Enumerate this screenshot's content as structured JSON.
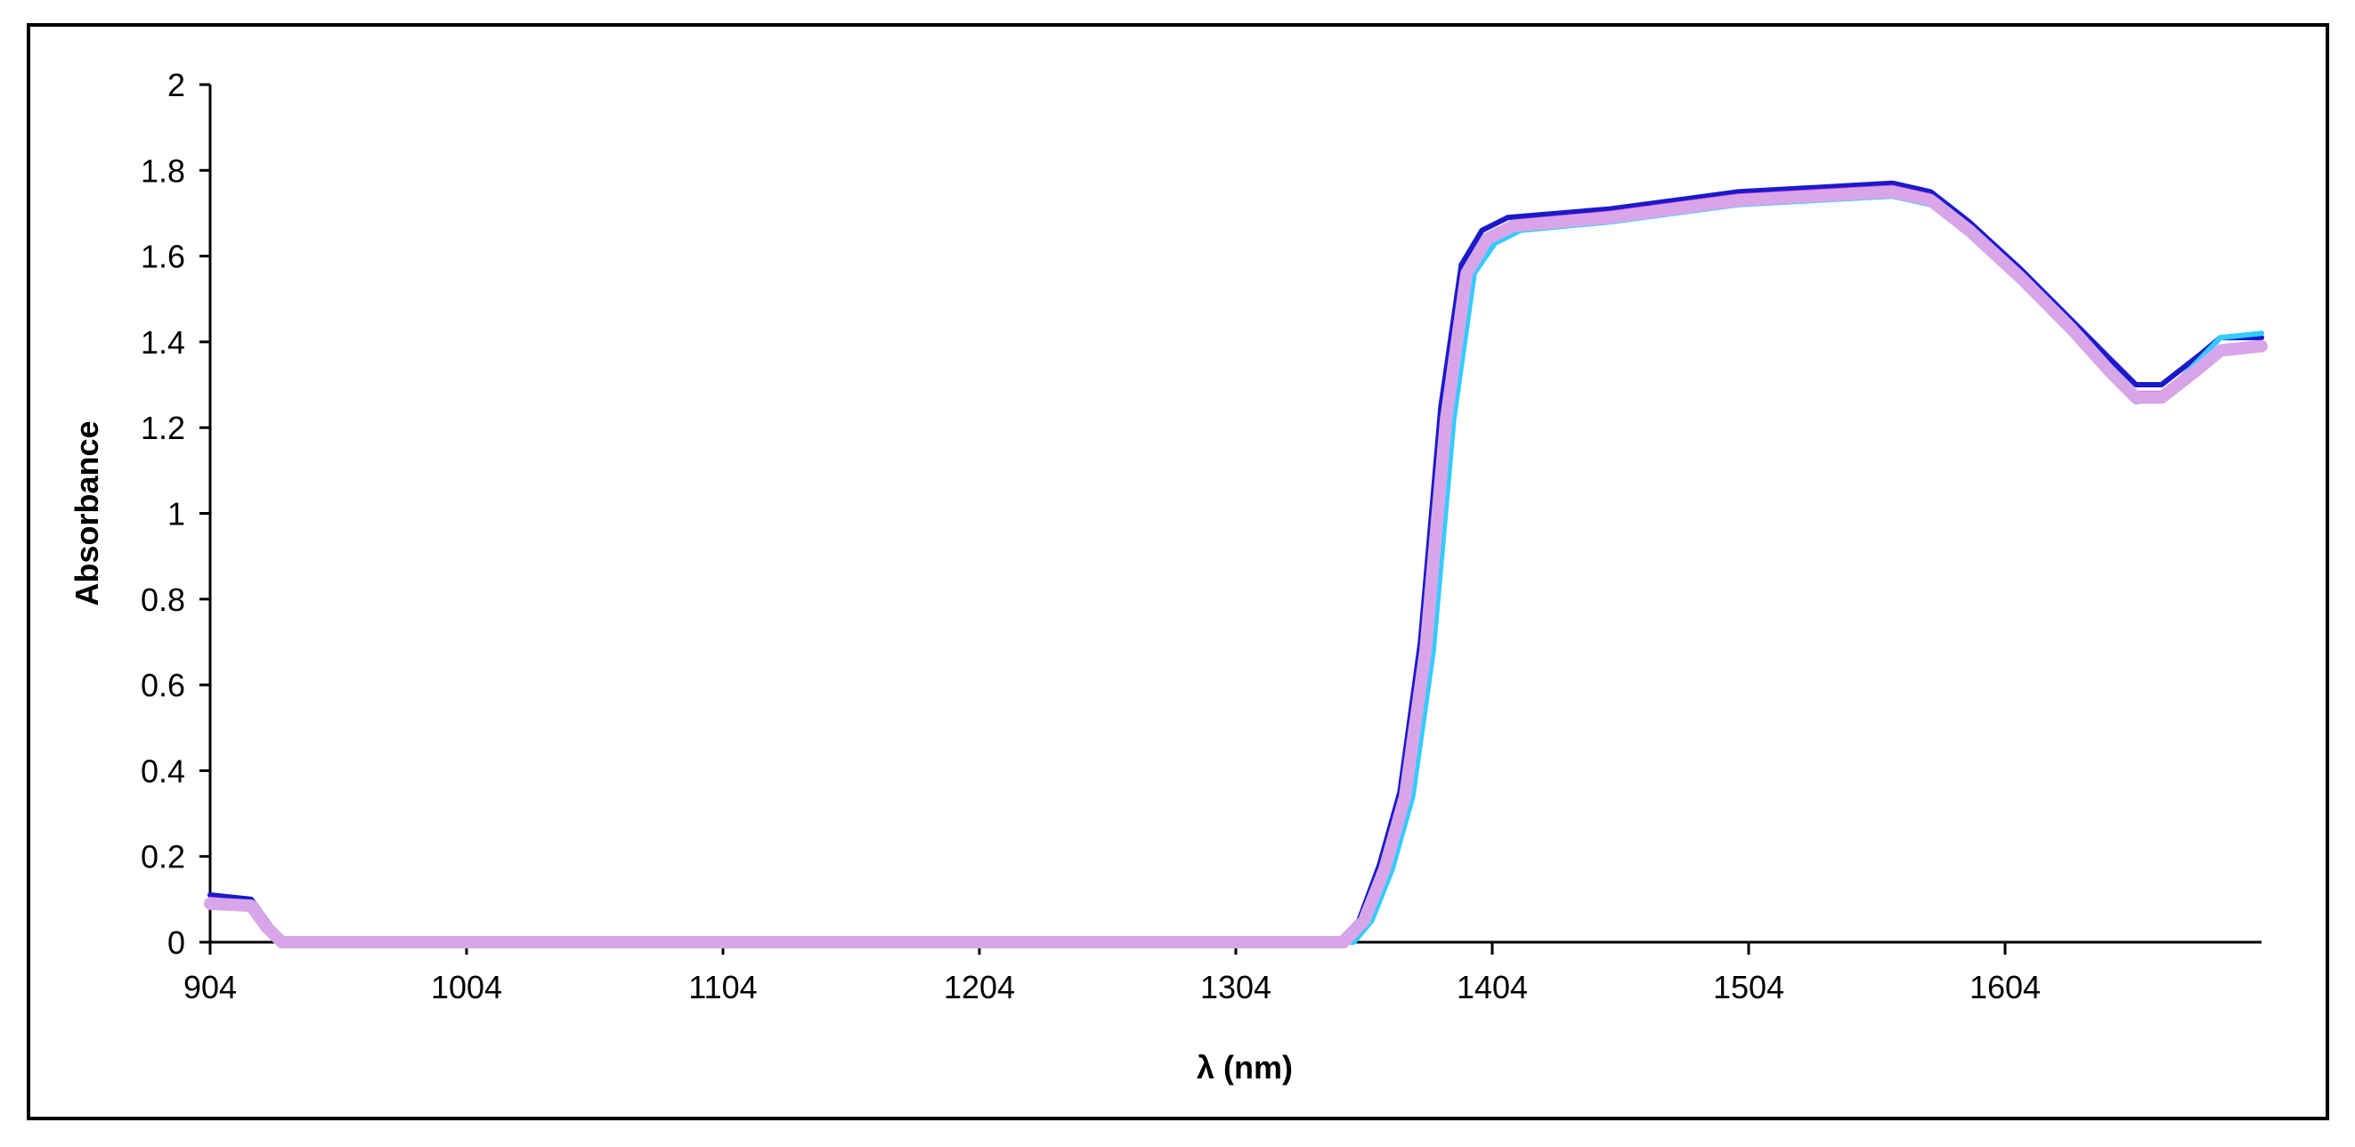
{
  "chart_data": {
    "type": "line",
    "title": "",
    "xlabel": "λ (nm)",
    "ylabel": "Absorbance",
    "xlim": [
      904,
      1704
    ],
    "ylim": [
      0,
      2
    ],
    "x_ticks": [
      904,
      1004,
      1104,
      1204,
      1304,
      1404,
      1504,
      1604
    ],
    "y_ticks": [
      "0",
      "0.2",
      "0.4",
      "0.6",
      "0.8",
      "1",
      "1.2",
      "1.4",
      "1.6",
      "1.8",
      "2"
    ],
    "grid": false,
    "legend": "none",
    "series": [
      {
        "color": "#1a1acc",
        "points": [
          [
            904,
            0.11
          ],
          [
            920,
            0.1
          ],
          [
            926,
            0.05
          ],
          [
            932,
            0
          ],
          [
            1344,
            0
          ],
          [
            1352,
            0.05
          ],
          [
            1360,
            0.18
          ],
          [
            1368,
            0.35
          ],
          [
            1376,
            0.7
          ],
          [
            1384,
            1.25
          ],
          [
            1392,
            1.58
          ],
          [
            1400,
            1.66
          ],
          [
            1410,
            1.69
          ],
          [
            1450,
            1.71
          ],
          [
            1500,
            1.75
          ],
          [
            1530,
            1.76
          ],
          [
            1560,
            1.77
          ],
          [
            1575,
            1.75
          ],
          [
            1590,
            1.68
          ],
          [
            1610,
            1.57
          ],
          [
            1630,
            1.45
          ],
          [
            1645,
            1.36
          ],
          [
            1655,
            1.3
          ],
          [
            1665,
            1.3
          ],
          [
            1680,
            1.37
          ],
          [
            1688,
            1.41
          ],
          [
            1704,
            1.41
          ]
        ]
      },
      {
        "color": "#33ccff",
        "points": [
          [
            904,
            0.09
          ],
          [
            920,
            0.08
          ],
          [
            926,
            0.03
          ],
          [
            932,
            0
          ],
          [
            1350,
            0
          ],
          [
            1357,
            0.05
          ],
          [
            1365,
            0.17
          ],
          [
            1373,
            0.34
          ],
          [
            1381,
            0.68
          ],
          [
            1389,
            1.22
          ],
          [
            1397,
            1.56
          ],
          [
            1405,
            1.63
          ],
          [
            1415,
            1.66
          ],
          [
            1450,
            1.68
          ],
          [
            1500,
            1.72
          ],
          [
            1530,
            1.73
          ],
          [
            1560,
            1.74
          ],
          [
            1575,
            1.72
          ],
          [
            1590,
            1.65
          ],
          [
            1610,
            1.54
          ],
          [
            1630,
            1.42
          ],
          [
            1645,
            1.32
          ],
          [
            1655,
            1.26
          ],
          [
            1665,
            1.27
          ],
          [
            1680,
            1.36
          ],
          [
            1688,
            1.41
          ],
          [
            1704,
            1.42
          ]
        ]
      },
      {
        "color": "#e04ad0",
        "points": [
          [
            904,
            0.1
          ],
          [
            920,
            0.09
          ],
          [
            926,
            0.04
          ],
          [
            932,
            0
          ],
          [
            1347,
            0
          ],
          [
            1355,
            0.05
          ],
          [
            1363,
            0.18
          ],
          [
            1371,
            0.35
          ],
          [
            1379,
            0.69
          ],
          [
            1387,
            1.24
          ],
          [
            1395,
            1.57
          ],
          [
            1403,
            1.65
          ],
          [
            1413,
            1.68
          ],
          [
            1450,
            1.7
          ],
          [
            1500,
            1.74
          ],
          [
            1530,
            1.75
          ],
          [
            1560,
            1.76
          ],
          [
            1575,
            1.74
          ],
          [
            1590,
            1.67
          ],
          [
            1610,
            1.56
          ],
          [
            1630,
            1.44
          ],
          [
            1645,
            1.34
          ],
          [
            1655,
            1.28
          ],
          [
            1665,
            1.28
          ],
          [
            1680,
            1.35
          ],
          [
            1688,
            1.38
          ],
          [
            1704,
            1.39
          ]
        ]
      },
      {
        "color": "#d8a6e8",
        "points": [
          [
            904,
            0.09
          ],
          [
            920,
            0.085
          ],
          [
            926,
            0.035
          ],
          [
            932,
            0
          ],
          [
            1346,
            0
          ],
          [
            1354,
            0.05
          ],
          [
            1362,
            0.17
          ],
          [
            1370,
            0.34
          ],
          [
            1378,
            0.68
          ],
          [
            1386,
            1.22
          ],
          [
            1394,
            1.56
          ],
          [
            1402,
            1.64
          ],
          [
            1412,
            1.67
          ],
          [
            1450,
            1.69
          ],
          [
            1500,
            1.73
          ],
          [
            1530,
            1.74
          ],
          [
            1560,
            1.75
          ],
          [
            1575,
            1.73
          ],
          [
            1590,
            1.66
          ],
          [
            1610,
            1.55
          ],
          [
            1630,
            1.43
          ],
          [
            1645,
            1.33
          ],
          [
            1655,
            1.27
          ],
          [
            1665,
            1.27
          ],
          [
            1680,
            1.34
          ],
          [
            1688,
            1.38
          ],
          [
            1704,
            1.39
          ]
        ]
      }
    ]
  }
}
